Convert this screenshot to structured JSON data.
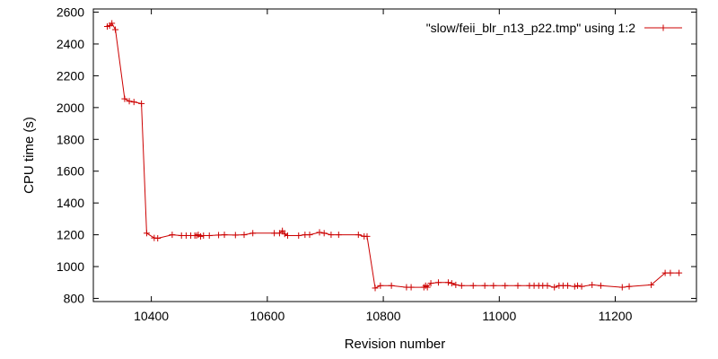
{
  "chart_data": {
    "type": "line",
    "xlabel": "Revision number",
    "ylabel": "CPU time (s)",
    "xlim": [
      10300,
      11340
    ],
    "ylim": [
      780,
      2620
    ],
    "xticks": [
      10400,
      10600,
      10800,
      11000,
      11200
    ],
    "yticks": [
      800,
      1000,
      1200,
      1400,
      1600,
      1800,
      2000,
      2200,
      2400,
      2600
    ],
    "grid": false,
    "legend_position": "top-right",
    "series": [
      {
        "name": "\"slow/feii_blr_n13_p22.tmp\" using 1:2",
        "color": "#cc0000",
        "marker": "plus",
        "x": [
          10324,
          10328,
          10332,
          10338,
          10354,
          10362,
          10370,
          10383,
          10392,
          10405,
          10411,
          10436,
          10452,
          10460,
          10468,
          10475,
          10478,
          10481,
          10485,
          10490,
          10500,
          10516,
          10526,
          10545,
          10560,
          10575,
          10612,
          10621,
          10626,
          10630,
          10635,
          10654,
          10665,
          10673,
          10690,
          10698,
          10710,
          10723,
          10757,
          10767,
          10772,
          10786,
          10795,
          10814,
          10840,
          10848,
          10870,
          10873,
          10876,
          10882,
          10895,
          10912,
          10918,
          10925,
          10935,
          10955,
          10975,
          10990,
          11010,
          11032,
          11052,
          11060,
          11068,
          11075,
          11083,
          11095,
          11103,
          11110,
          11118,
          11130,
          11135,
          11142,
          11160,
          11175,
          11212,
          11224,
          11262,
          11286,
          11295,
          11310
        ],
        "y": [
          2510,
          2515,
          2530,
          2490,
          2055,
          2040,
          2035,
          2025,
          1210,
          1180,
          1178,
          1200,
          1195,
          1195,
          1195,
          1195,
          1195,
          1200,
          1190,
          1195,
          1195,
          1198,
          1200,
          1198,
          1200,
          1210,
          1210,
          1210,
          1225,
          1205,
          1195,
          1195,
          1200,
          1200,
          1215,
          1210,
          1200,
          1200,
          1200,
          1190,
          1190,
          865,
          880,
          880,
          870,
          870,
          870,
          880,
          870,
          895,
          900,
          900,
          895,
          885,
          880,
          880,
          880,
          880,
          880,
          880,
          880,
          880,
          880,
          880,
          880,
          870,
          880,
          880,
          880,
          875,
          880,
          875,
          885,
          880,
          870,
          875,
          885,
          960,
          960,
          960
        ]
      }
    ]
  }
}
